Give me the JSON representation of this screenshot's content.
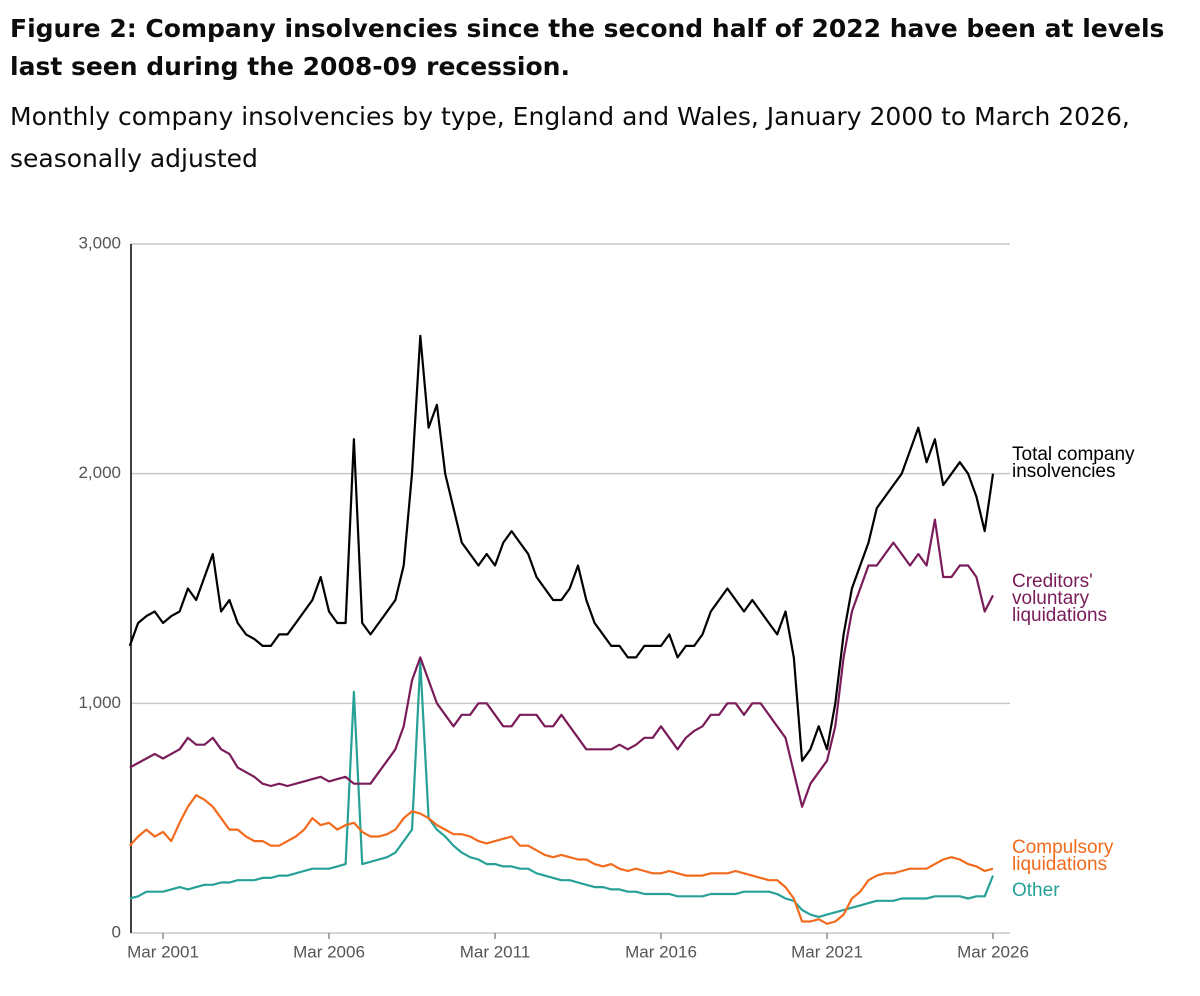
{
  "title": "Figure 2: Company insolvencies since the second half of 2022 have been at levels last seen during the 2008-09 recession.",
  "subtitle": "Monthly company insolvencies by type, England and Wales, January 2000 to March 2026, seasonally adjusted",
  "chart_data": {
    "type": "line",
    "x": [
      "Mar 2000",
      "Jun 2000",
      "Sep 2000",
      "Dec 2000",
      "Mar 2001",
      "Jun 2001",
      "Sep 2001",
      "Dec 2001",
      "Mar 2002",
      "Jun 2002",
      "Sep 2002",
      "Dec 2002",
      "Mar 2003",
      "Jun 2003",
      "Sep 2003",
      "Dec 2003",
      "Mar 2004",
      "Jun 2004",
      "Sep 2004",
      "Dec 2004",
      "Mar 2005",
      "Jun 2005",
      "Sep 2005",
      "Dec 2005",
      "Mar 2006",
      "Jun 2006",
      "Sep 2006",
      "Dec 2006",
      "Mar 2007",
      "Jun 2007",
      "Sep 2007",
      "Dec 2007",
      "Mar 2008",
      "Jun 2008",
      "Sep 2008",
      "Dec 2008",
      "Mar 2009",
      "Jun 2009",
      "Sep 2009",
      "Dec 2009",
      "Mar 2010",
      "Jun 2010",
      "Sep 2010",
      "Dec 2010",
      "Mar 2011",
      "Jun 2011",
      "Sep 2011",
      "Dec 2011",
      "Mar 2012",
      "Jun 2012",
      "Sep 2012",
      "Dec 2012",
      "Mar 2013",
      "Jun 2013",
      "Sep 2013",
      "Dec 2013",
      "Mar 2014",
      "Jun 2014",
      "Sep 2014",
      "Dec 2014",
      "Mar 2015",
      "Jun 2015",
      "Sep 2015",
      "Dec 2015",
      "Mar 2016",
      "Jun 2016",
      "Sep 2016",
      "Dec 2016",
      "Mar 2017",
      "Jun 2017",
      "Sep 2017",
      "Dec 2017",
      "Mar 2018",
      "Jun 2018",
      "Sep 2018",
      "Dec 2018",
      "Mar 2019",
      "Jun 2019",
      "Sep 2019",
      "Dec 2019",
      "Mar 2020",
      "Jun 2020",
      "Sep 2020",
      "Dec 2020",
      "Mar 2021",
      "Jun 2021",
      "Sep 2021",
      "Dec 2021",
      "Mar 2022",
      "Jun 2022",
      "Sep 2022",
      "Dec 2022",
      "Mar 2023",
      "Jun 2023",
      "Sep 2023",
      "Dec 2023",
      "Mar 2024",
      "Jun 2024",
      "Sep 2024",
      "Dec 2024",
      "Mar 2025",
      "Jun 2025",
      "Sep 2025",
      "Dec 2025",
      "Mar 2026"
    ],
    "xticks": [
      "Mar 2001",
      "Mar 2006",
      "Mar 2011",
      "Mar 2016",
      "Mar 2021",
      "Mar 2026"
    ],
    "ylim": [
      0,
      3000
    ],
    "yticks": [
      0,
      {
        "value": 1000,
        "label": "1,000"
      },
      {
        "value": 2000,
        "label": "2,000"
      },
      {
        "value": 3000,
        "label": "3,000"
      }
    ],
    "grid": true,
    "series": [
      {
        "name": "Total company insolvencies",
        "color": "#000000",
        "values": [
          1250,
          1350,
          1380,
          1400,
          1350,
          1380,
          1400,
          1500,
          1450,
          1550,
          1650,
          1400,
          1450,
          1350,
          1300,
          1280,
          1250,
          1250,
          1300,
          1300,
          1350,
          1400,
          1450,
          1550,
          1400,
          1350,
          1350,
          2150,
          1350,
          1300,
          1350,
          1400,
          1450,
          1600,
          2000,
          2600,
          2200,
          2300,
          2000,
          1850,
          1700,
          1650,
          1600,
          1650,
          1600,
          1700,
          1750,
          1700,
          1650,
          1550,
          1500,
          1450,
          1450,
          1500,
          1600,
          1450,
          1350,
          1300,
          1250,
          1250,
          1200,
          1200,
          1250,
          1250,
          1250,
          1300,
          1200,
          1250,
          1250,
          1300,
          1400,
          1450,
          1500,
          1450,
          1400,
          1450,
          1400,
          1350,
          1300,
          1400,
          1200,
          750,
          800,
          900,
          800,
          1000,
          1300,
          1500,
          1600,
          1700,
          1850,
          1900,
          1950,
          2000,
          2100,
          2200,
          2050,
          2150,
          1950,
          2000,
          2050,
          2000,
          1900,
          1750,
          2000
        ]
      },
      {
        "name": "Creditors' voluntary liquidations",
        "color": "#7a1c5a",
        "values": [
          720,
          740,
          760,
          780,
          760,
          780,
          800,
          850,
          820,
          820,
          850,
          800,
          780,
          720,
          700,
          680,
          650,
          640,
          650,
          640,
          650,
          660,
          670,
          680,
          660,
          670,
          680,
          650,
          650,
          650,
          700,
          750,
          800,
          900,
          1100,
          1200,
          1100,
          1000,
          950,
          900,
          950,
          950,
          1000,
          1000,
          950,
          900,
          900,
          950,
          950,
          950,
          900,
          900,
          950,
          900,
          850,
          800,
          800,
          800,
          800,
          820,
          800,
          820,
          850,
          850,
          900,
          850,
          800,
          850,
          880,
          900,
          950,
          950,
          1000,
          1000,
          950,
          1000,
          1000,
          950,
          900,
          850,
          700,
          550,
          650,
          700,
          750,
          900,
          1200,
          1400,
          1500,
          1600,
          1600,
          1650,
          1700,
          1650,
          1600,
          1650,
          1600,
          1800,
          1550,
          1550,
          1600,
          1600,
          1550,
          1400,
          1470
        ]
      },
      {
        "name": "Compulsory liquidations",
        "color": "#f26b1d",
        "values": [
          380,
          420,
          450,
          420,
          440,
          400,
          480,
          550,
          600,
          580,
          550,
          500,
          450,
          450,
          420,
          400,
          400,
          380,
          380,
          400,
          420,
          450,
          500,
          470,
          480,
          450,
          470,
          480,
          440,
          420,
          420,
          430,
          450,
          500,
          530,
          520,
          500,
          470,
          450,
          430,
          430,
          420,
          400,
          390,
          400,
          410,
          420,
          380,
          380,
          360,
          340,
          330,
          340,
          330,
          320,
          320,
          300,
          290,
          300,
          280,
          270,
          280,
          270,
          260,
          260,
          270,
          260,
          250,
          250,
          250,
          260,
          260,
          260,
          270,
          260,
          250,
          240,
          230,
          230,
          200,
          150,
          50,
          50,
          60,
          40,
          50,
          80,
          150,
          180,
          230,
          250,
          260,
          260,
          270,
          280,
          280,
          280,
          300,
          320,
          330,
          320,
          300,
          290,
          270,
          280
        ]
      },
      {
        "name": "Other",
        "color": "#27a197",
        "values": [
          150,
          160,
          180,
          180,
          180,
          190,
          200,
          190,
          200,
          210,
          210,
          220,
          220,
          230,
          230,
          230,
          240,
          240,
          250,
          250,
          260,
          270,
          280,
          280,
          280,
          290,
          300,
          1050,
          300,
          310,
          320,
          330,
          350,
          400,
          450,
          1180,
          500,
          450,
          420,
          380,
          350,
          330,
          320,
          300,
          300,
          290,
          290,
          280,
          280,
          260,
          250,
          240,
          230,
          230,
          220,
          210,
          200,
          200,
          190,
          190,
          180,
          180,
          170,
          170,
          170,
          170,
          160,
          160,
          160,
          160,
          170,
          170,
          170,
          170,
          180,
          180,
          180,
          180,
          170,
          150,
          140,
          100,
          80,
          70,
          80,
          90,
          100,
          110,
          120,
          130,
          140,
          140,
          140,
          150,
          150,
          150,
          150,
          160,
          160,
          160,
          160,
          150,
          160,
          160,
          250
        ]
      }
    ]
  }
}
